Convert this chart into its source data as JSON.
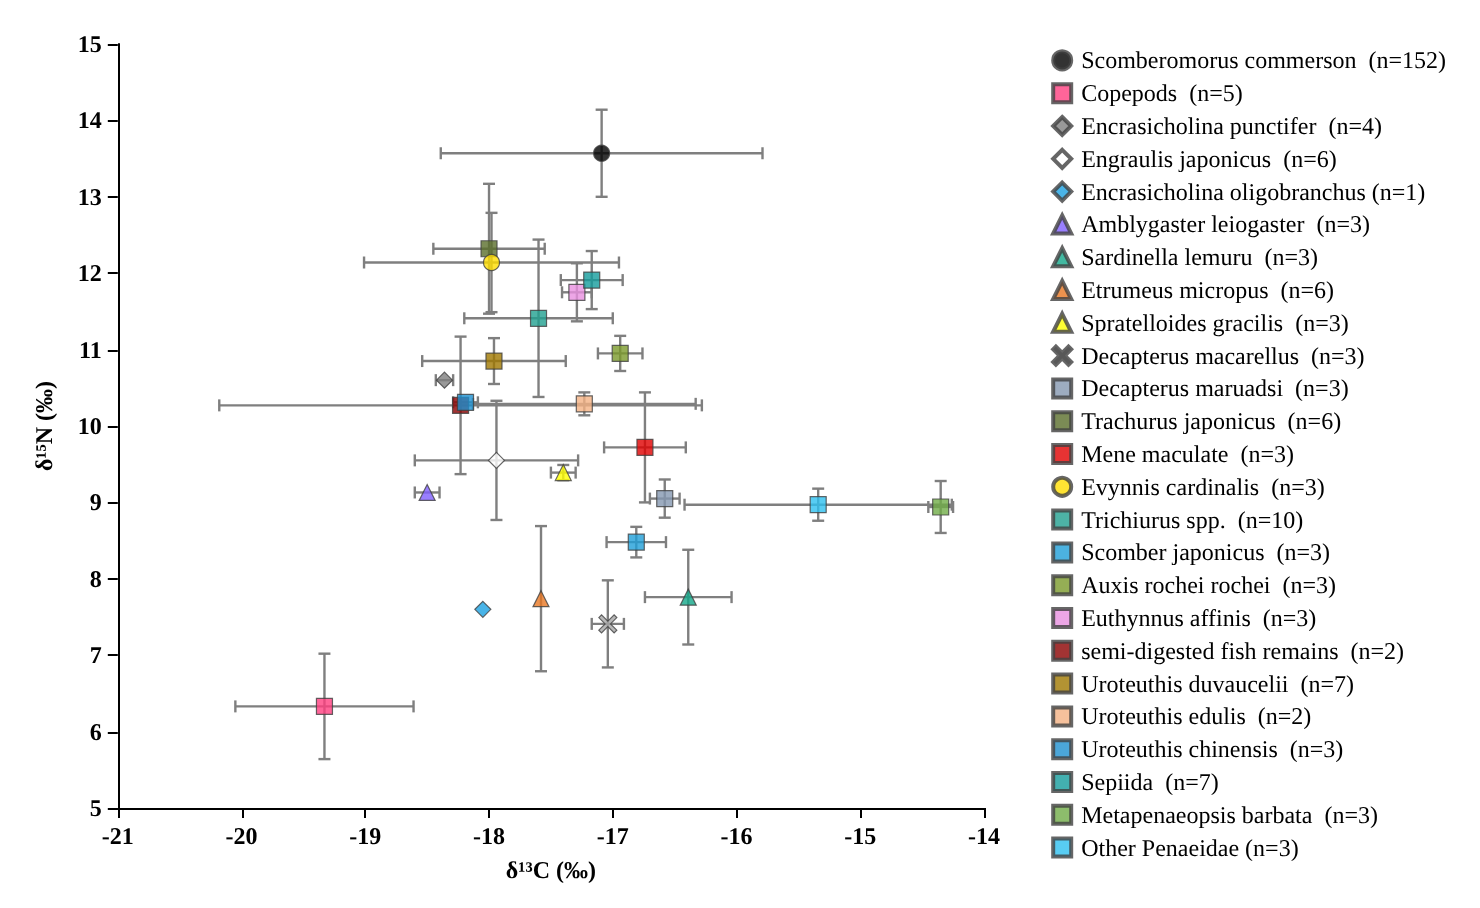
{
  "chart_data": {
    "type": "scatter",
    "xlabel": "δ¹³C (‰)",
    "ylabel": "δ¹⁵N (‰)",
    "xlim": [
      -21,
      -14
    ],
    "xticks": [
      -21,
      -20,
      -19,
      -18,
      -17,
      -16,
      -15,
      -14
    ],
    "ylim": [
      5,
      15
    ],
    "yticks": [
      5,
      6,
      7,
      8,
      9,
      10,
      11,
      12,
      13,
      14,
      15
    ],
    "grid": false,
    "legend": "right",
    "series": [
      {
        "name": "Scomberomorus commerson  (n=152)",
        "color": "#000000",
        "marker": "circle",
        "x": [
          -17.09
        ],
        "values": [
          13.57
        ],
        "xerrors": [
          1.3
        ],
        "errors": [
          0.57
        ]
      },
      {
        "name": "Copepods  (n=5)",
        "color": "#ff3f7f",
        "marker": "square",
        "x": [
          -19.33
        ],
        "values": [
          6.33
        ],
        "xerrors": [
          0.72
        ],
        "errors": [
          0.69
        ]
      },
      {
        "name": "Encrasicholina punctifer  (n=4)",
        "color": "#808080",
        "marker": "diamond",
        "x": [
          -18.36
        ],
        "values": [
          10.6
        ],
        "xerrors": [
          0.07
        ],
        "errors": [
          null
        ]
      },
      {
        "name": "Engraulis japonicus  (n=6)",
        "color": "#ffffff",
        "marker": "diamond",
        "x": [
          -17.94
        ],
        "values": [
          9.55
        ],
        "xerrors": [
          0.66
        ],
        "errors": [
          0.78
        ]
      },
      {
        "name": "Encrasicholina oligobranchus (n=1)",
        "color": "#1ba1e2",
        "marker": "diamond",
        "x": [
          -18.05
        ],
        "values": [
          7.6
        ],
        "xerrors": [
          null
        ],
        "errors": [
          null
        ]
      },
      {
        "name": "Amblygaster leiogaster  (n=3)",
        "color": "#7f5fff",
        "marker": "triangle",
        "x": [
          -18.5
        ],
        "values": [
          9.13
        ],
        "xerrors": [
          0.1
        ],
        "errors": [
          null
        ]
      },
      {
        "name": "Sardinella lemuru  (n=3)",
        "color": "#13a88a",
        "marker": "triangle",
        "x": [
          -16.39
        ],
        "values": [
          7.76
        ],
        "xerrors": [
          0.35
        ],
        "errors": [
          0.62
        ]
      },
      {
        "name": "Etrumeus micropus  (n=6)",
        "color": "#e87722",
        "marker": "triangle",
        "x": [
          -17.58
        ],
        "values": [
          7.74
        ],
        "xerrors": [
          null
        ],
        "errors": [
          0.95
        ]
      },
      {
        "name": "Spratelloides gracilis  (n=3)",
        "color": "#ffff00",
        "marker": "triangle",
        "x": [
          -17.4
        ],
        "values": [
          9.39
        ],
        "xerrors": [
          0.1
        ],
        "errors": [
          0.1
        ]
      },
      {
        "name": "Decapterus macarellus  (n=3)",
        "color": "#a6a6a6",
        "marker": "cross",
        "x": [
          -17.04
        ],
        "values": [
          7.41
        ],
        "xerrors": [
          0.13
        ],
        "errors": [
          0.57
        ]
      },
      {
        "name": "Decapterus maruadsi  (n=3)",
        "color": "#8497b0",
        "marker": "square",
        "x": [
          -16.58
        ],
        "values": [
          9.05
        ],
        "xerrors": [
          0.12
        ],
        "errors": [
          0.25
        ]
      },
      {
        "name": "Trachurus japonicus  (n=6)",
        "color": "#5a6e2a",
        "marker": "square",
        "x": [
          -18.0
        ],
        "values": [
          12.32
        ],
        "xerrors": [
          0.45
        ],
        "errors": [
          0.85
        ]
      },
      {
        "name": "Mene maculate  (n=3)",
        "color": "#e00000",
        "marker": "square",
        "x": [
          -16.74
        ],
        "values": [
          9.72
        ],
        "xerrors": [
          0.33
        ],
        "errors": [
          0.72
        ]
      },
      {
        "name": "Evynnis cardinalis  (n=3)",
        "color": "#ffdd00",
        "marker": "circle",
        "x": [
          -17.98
        ],
        "values": [
          12.14
        ],
        "xerrors": [
          1.03
        ],
        "errors": [
          0.65
        ]
      },
      {
        "name": "Trichiurus spp.  (n=10)",
        "color": "#20a090",
        "marker": "square",
        "x": [
          -17.6
        ],
        "values": [
          11.41
        ],
        "xerrors": [
          0.6
        ],
        "errors": [
          1.03
        ]
      },
      {
        "name": "Scomber japonicus  (n=3)",
        "color": "#1f9fd8",
        "marker": "square",
        "x": [
          -16.81
        ],
        "values": [
          8.48
        ],
        "xerrors": [
          0.24
        ],
        "errors": [
          0.2
        ]
      },
      {
        "name": "Auxis rochei rochei  (n=3)",
        "color": "#7a9a2a",
        "marker": "square",
        "x": [
          -16.94
        ],
        "values": [
          10.95
        ],
        "xerrors": [
          0.18
        ],
        "errors": [
          0.23
        ]
      },
      {
        "name": "Euthynnus affinis  (n=3)",
        "color": "#e890e0",
        "marker": "square",
        "x": [
          -17.29
        ],
        "values": [
          11.75
        ],
        "xerrors": [
          0.12
        ],
        "errors": [
          0.38
        ]
      },
      {
        "name": "semi-digested fish remains  (n=2)",
        "color": "#8b0000",
        "marker": "square",
        "x": [
          -18.23
        ],
        "values": [
          10.27
        ],
        "xerrors": [
          1.95
        ],
        "errors": [
          0.9
        ]
      },
      {
        "name": "Uroteuthis duvaucelii  (n=7)",
        "color": "#a07800",
        "marker": "square",
        "x": [
          -17.96
        ],
        "values": [
          10.85
        ],
        "xerrors": [
          0.58
        ],
        "errors": [
          0.3
        ]
      },
      {
        "name": "Uroteuthis edulis  (n=2)",
        "color": "#f4b183",
        "marker": "square",
        "x": [
          -17.23
        ],
        "values": [
          10.29
        ],
        "xerrors": [
          0.9
        ],
        "errors": [
          0.15
        ]
      },
      {
        "name": "Uroteuthis chinensis  (n=3)",
        "color": "#1e90d0",
        "marker": "square",
        "x": [
          -18.19
        ],
        "values": [
          10.31
        ],
        "xerrors": [
          0.1
        ],
        "errors": [
          null
        ]
      },
      {
        "name": "Sepiida  (n=7)",
        "color": "#149c9c",
        "marker": "square",
        "x": [
          -17.17
        ],
        "values": [
          11.91
        ],
        "xerrors": [
          0.25
        ],
        "errors": [
          0.38
        ]
      },
      {
        "name": "Metapenaeopsis barbata  (n=3)",
        "color": "#70ad47",
        "marker": "square",
        "x": [
          -14.35
        ],
        "values": [
          8.94
        ],
        "xerrors": [
          0.1
        ],
        "errors": [
          0.34
        ]
      },
      {
        "name": "Other Penaeidae (n=3)",
        "color": "#2ec0f0",
        "marker": "square",
        "x": [
          -15.34
        ],
        "values": [
          8.97
        ],
        "xerrors": [
          1.08
        ],
        "errors": [
          0.21
        ]
      }
    ]
  }
}
